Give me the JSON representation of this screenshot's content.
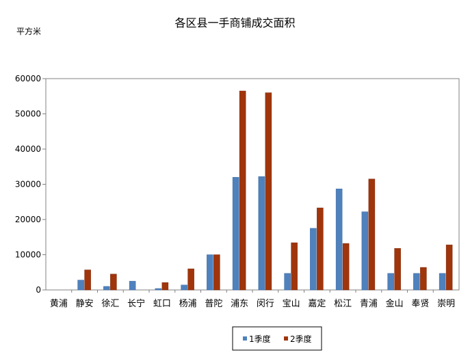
{
  "chart_data": {
    "type": "bar",
    "title": "各区县一手商铺成交面积",
    "ylabel": "平方米",
    "xlabel": "",
    "ylim": [
      0,
      60000
    ],
    "yticks": [
      0,
      10000,
      20000,
      30000,
      40000,
      50000,
      60000
    ],
    "grid": false,
    "legend_position": "bottom",
    "categories": [
      "黄浦",
      "静安",
      "徐汇",
      "长宁",
      "虹口",
      "杨浦",
      "普陀",
      "浦东",
      "闵行",
      "宝山",
      "嘉定",
      "松江",
      "青浦",
      "金山",
      "奉贤",
      "崇明"
    ],
    "series": [
      {
        "name": "1季度",
        "color": "#4f81bd",
        "values": [
          0,
          2800,
          1000,
          2500,
          400,
          1400,
          10000,
          32000,
          32200,
          4700,
          17500,
          28700,
          22200,
          4700,
          4700,
          4700
        ]
      },
      {
        "name": "2季度",
        "color": "#a0350b",
        "values": [
          0,
          5700,
          4500,
          0,
          2100,
          6000,
          10000,
          56500,
          56000,
          13400,
          23300,
          13200,
          31500,
          11800,
          6400,
          12800
        ]
      }
    ]
  }
}
